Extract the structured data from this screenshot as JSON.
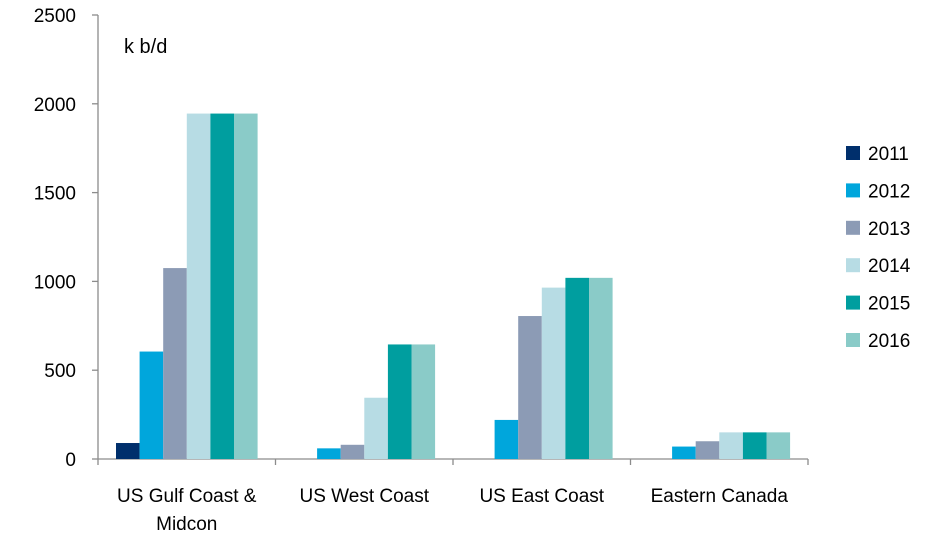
{
  "chart_data": {
    "type": "bar",
    "title": "",
    "unit_label": "k b/d",
    "xlabel": "",
    "ylabel": "",
    "ylim": [
      0,
      2500
    ],
    "yticks": [
      0,
      500,
      1000,
      1500,
      2000,
      2500
    ],
    "categories": [
      [
        "US Gulf Coast &",
        "Midcon"
      ],
      [
        "US West Coast"
      ],
      [
        "US East Coast"
      ],
      [
        "Eastern Canada"
      ]
    ],
    "legend_position": "right",
    "grid": false,
    "series": [
      {
        "name": "2011",
        "color": "#002F6C",
        "values": [
          90,
          0,
          0,
          0
        ]
      },
      {
        "name": "2012",
        "color": "#00A6DC",
        "values": [
          605,
          60,
          220,
          70
        ]
      },
      {
        "name": "2013",
        "color": "#8C9BB5",
        "values": [
          1075,
          80,
          805,
          100
        ]
      },
      {
        "name": "2014",
        "color": "#B7DCE4",
        "values": [
          1945,
          345,
          965,
          150
        ]
      },
      {
        "name": "2015",
        "color": "#009E9F",
        "values": [
          1945,
          645,
          1020,
          150
        ]
      },
      {
        "name": "2016",
        "color": "#8ACBC8",
        "values": [
          1945,
          645,
          1020,
          150
        ]
      }
    ]
  }
}
